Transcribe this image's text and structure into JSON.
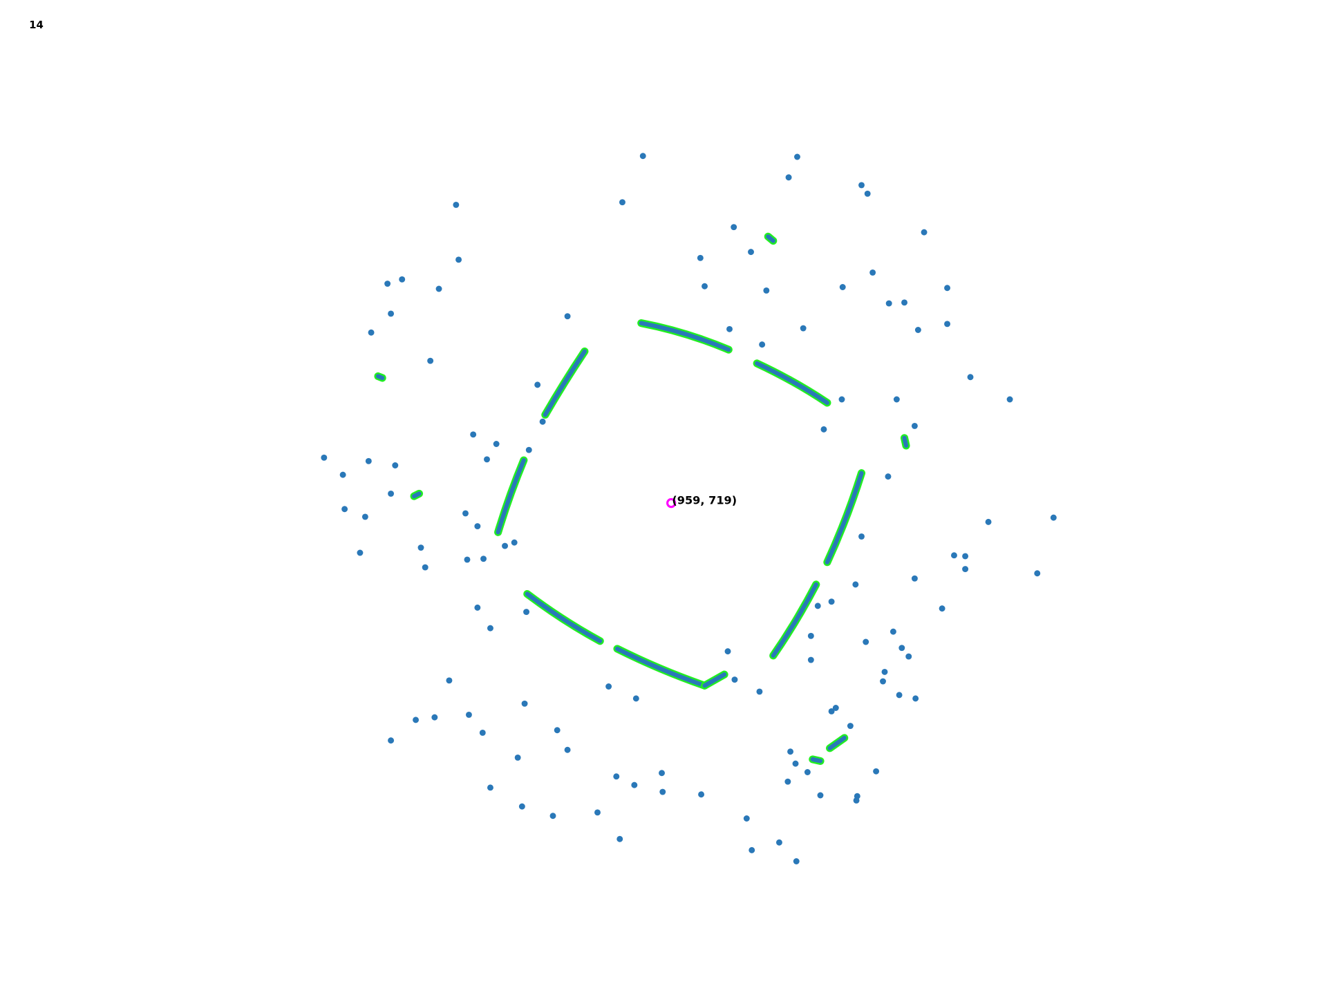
{
  "header": {
    "frame": "14"
  },
  "center": {
    "label": "(959, 719)"
  }
}
